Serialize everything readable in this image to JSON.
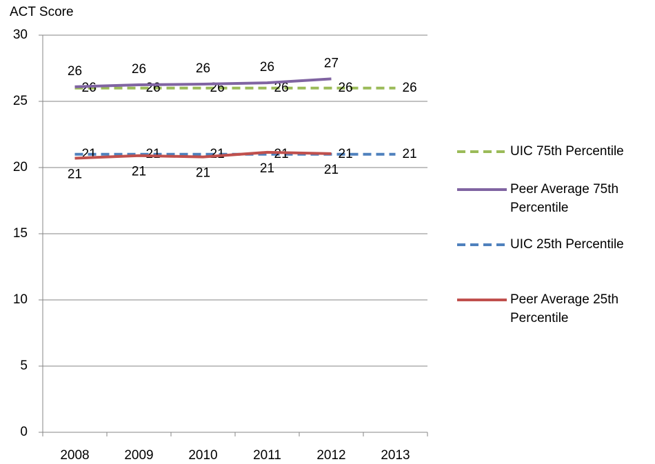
{
  "chart_data": {
    "type": "line",
    "y_label": "ACT Score",
    "categories": [
      "2008",
      "2009",
      "2010",
      "2011",
      "2012",
      "2013"
    ],
    "ylim": [
      0,
      30
    ],
    "yticks": [
      0,
      5,
      10,
      15,
      20,
      25,
      30
    ],
    "grid": true,
    "legend": "right",
    "series": [
      {
        "name": "UIC 75th Percentile",
        "color": "#9bbb59",
        "line_style": "dashed",
        "values": [
          26,
          26,
          26,
          26,
          26,
          26
        ]
      },
      {
        "name": "Peer Average 75th Percentile",
        "color": "#8064a2",
        "line_style": "solid",
        "values": [
          26.1,
          26.25,
          26.3,
          26.4,
          26.7,
          null
        ],
        "value_labels": [
          "26",
          "26",
          "26",
          "26",
          "27",
          null
        ]
      },
      {
        "name": "UIC 25th Percentile",
        "color": "#4f81bd",
        "line_style": "dashed",
        "values": [
          21,
          21,
          21,
          21,
          21,
          21
        ]
      },
      {
        "name": "Peer Average 25th Percentile",
        "color": "#c0504d",
        "line_style": "solid",
        "values": [
          20.7,
          20.9,
          20.8,
          21.15,
          21.05,
          null
        ],
        "value_labels": [
          "21",
          "21",
          "21",
          "21",
          "21",
          null
        ]
      }
    ]
  }
}
